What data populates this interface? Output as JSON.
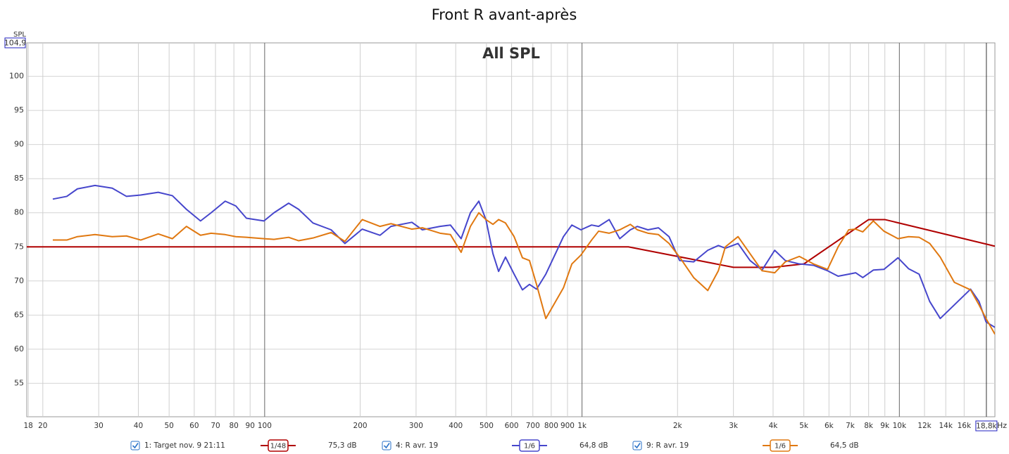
{
  "chart_data": {
    "type": "line",
    "title": "Front R avant-après",
    "annotation": "All SPL",
    "y_label": "SPL",
    "x_unit": "Hz",
    "log_x": true,
    "grid": true,
    "xlim": [
      17.8,
      20000
    ],
    "ylim": [
      50.1,
      104.9
    ],
    "y_top": {
      "value": 104.9,
      "label": "104,9"
    },
    "x_cursor": {
      "value": 18800,
      "label": "18,8k"
    },
    "yticks": [
      55,
      60,
      65,
      70,
      75,
      80,
      85,
      90,
      95,
      100
    ],
    "xticks": [
      18,
      20,
      30,
      40,
      50,
      60,
      70,
      80,
      90,
      100,
      200,
      300,
      400,
      500,
      600,
      700,
      800,
      900,
      {
        "value": 1000,
        "label": "1k"
      },
      {
        "value": 2000,
        "label": "2k"
      },
      {
        "value": 3000,
        "label": "3k"
      },
      {
        "value": 4000,
        "label": "4k"
      },
      {
        "value": 5000,
        "label": "5k"
      },
      {
        "value": 6000,
        "label": "6k"
      },
      {
        "value": 7000,
        "label": "7k"
      },
      {
        "value": 8000,
        "label": "8k"
      },
      {
        "value": 9000,
        "label": "9k"
      },
      {
        "value": 10000,
        "label": "10k"
      },
      {
        "value": 12000,
        "label": "12k"
      },
      {
        "value": 14000,
        "label": "14k"
      },
      {
        "value": 16000,
        "label": "16k"
      }
    ],
    "series": [
      {
        "name": "1: Target nov. 9 21:11",
        "smoothing": "1/48",
        "level": "75,3 dB",
        "color": "#b00000",
        "x": [
          17.8,
          1400,
          3000,
          4000,
          5000,
          8000,
          9000,
          20000
        ],
        "values": [
          75,
          75,
          72,
          72,
          72.5,
          79,
          79,
          75.1
        ]
      },
      {
        "name": "4: R avr. 19",
        "smoothing": "1/6",
        "level": "64,8 dB",
        "color": "#4646cc",
        "x": [
          21.5,
          23.8,
          25.7,
          29.2,
          33.1,
          36.7,
          40.7,
          46.2,
          51.2,
          56.7,
          62.8,
          67.8,
          75.1,
          81.1,
          87.6,
          99.5,
          107,
          119,
          128,
          142,
          162,
          179,
          203,
          231,
          250,
          291,
          314,
          357,
          385,
          416,
          445,
          473,
          498,
          524,
          546,
          574,
          611,
          649,
          683,
          719,
          769,
          874,
          929,
          992,
          1072,
          1128,
          1218,
          1315,
          1420,
          1494,
          1613,
          1741,
          1880,
          2030,
          2248,
          2490,
          2689,
          2829,
          3102,
          3384,
          3692,
          4047,
          4370,
          4841,
          5362,
          5938,
          6412,
          6923,
          7286,
          7667,
          8278,
          8939,
          9900,
          10690,
          11540,
          12460,
          13450,
          14900,
          16760,
          17820,
          18750,
          20000
        ],
        "values": [
          82,
          82.4,
          83.5,
          84,
          83.6,
          82.4,
          82.6,
          83,
          82.5,
          80.5,
          78.8,
          80,
          81.7,
          81,
          79.2,
          78.8,
          80,
          81.4,
          80.5,
          78.5,
          77.5,
          75.5,
          77.6,
          76.7,
          78,
          78.6,
          77.5,
          78,
          78.2,
          76.2,
          80,
          81.7,
          79,
          74,
          71.4,
          73.5,
          71,
          68.7,
          69.5,
          68.8,
          71,
          76.5,
          78.2,
          77.5,
          78.2,
          78,
          79,
          76.2,
          77.5,
          78,
          77.5,
          77.8,
          76.5,
          73,
          72.8,
          74.5,
          75.2,
          74.8,
          75.5,
          73,
          71.6,
          74.5,
          73,
          72.5,
          72.3,
          71.5,
          70.7,
          71,
          71.2,
          70.5,
          71.6,
          71.7,
          73.4,
          71.8,
          71,
          67,
          64.5,
          66.5,
          68.8,
          67,
          64,
          63.2
        ]
      },
      {
        "name": "9: R avr. 19",
        "smoothing": "1/6",
        "level": "64,5 dB",
        "color": "#e07810",
        "x": [
          21.5,
          23.8,
          25.7,
          29.2,
          33.1,
          36.7,
          40.7,
          46.2,
          51.2,
          56.7,
          62.8,
          67.8,
          75.1,
          81.1,
          87.6,
          99.5,
          107,
          119,
          128,
          142,
          162,
          179,
          203,
          231,
          250,
          291,
          314,
          357,
          385,
          416,
          445,
          473,
          498,
          524,
          546,
          574,
          611,
          649,
          683,
          719,
          769,
          874,
          929,
          992,
          1072,
          1128,
          1218,
          1315,
          1420,
          1494,
          1613,
          1741,
          1880,
          2030,
          2248,
          2490,
          2689,
          2829,
          3102,
          3384,
          3692,
          4047,
          4370,
          4841,
          5362,
          5938,
          6412,
          6923,
          7286,
          7667,
          8278,
          8939,
          9900,
          10690,
          11540,
          12460,
          13450,
          14900,
          16760,
          17820,
          18750,
          20000
        ],
        "values": [
          76,
          76,
          76.5,
          76.8,
          76.5,
          76.6,
          76,
          76.9,
          76.2,
          78,
          76.7,
          77,
          76.8,
          76.5,
          76.4,
          76.2,
          76.1,
          76.4,
          75.9,
          76.3,
          77.1,
          75.8,
          79,
          78,
          78.4,
          77.6,
          77.8,
          77,
          76.8,
          74.2,
          78,
          80,
          79,
          78.3,
          79,
          78.5,
          76.5,
          73.4,
          73,
          69.5,
          64.5,
          69,
          72.5,
          73.8,
          76,
          77.3,
          77,
          77.5,
          78.3,
          77.5,
          77,
          76.8,
          75.5,
          73.5,
          70.5,
          68.6,
          71.5,
          75,
          76.5,
          74,
          71.5,
          71.2,
          72.8,
          73.6,
          72.5,
          71.7,
          75,
          77.5,
          77.6,
          77.2,
          78.8,
          77.3,
          76.2,
          76.5,
          76.4,
          75.5,
          73.5,
          69.8,
          68.7,
          66.5,
          64.5,
          62.2
        ]
      }
    ]
  }
}
